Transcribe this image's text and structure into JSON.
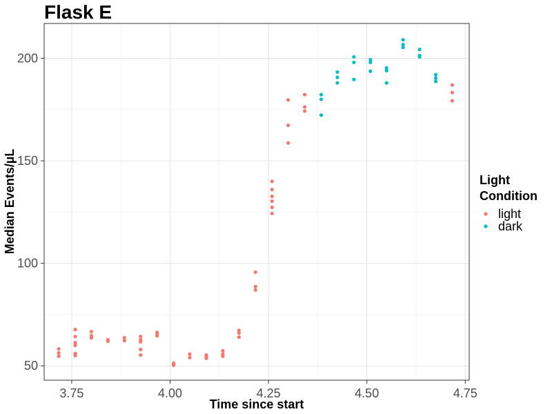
{
  "chart_data": {
    "type": "scatter",
    "title": "Flask E",
    "xlabel": "Time since start",
    "ylabel": "Median Events/µL",
    "xlim": [
      3.68,
      4.76
    ],
    "ylim": [
      43,
      217
    ],
    "x_ticks": [
      3.75,
      4.0,
      4.25,
      4.5,
      4.75
    ],
    "x_tick_labels": [
      "3.75",
      "4.00",
      "4.25",
      "4.50",
      "4.75"
    ],
    "y_ticks": [
      50,
      100,
      150,
      200
    ],
    "y_tick_labels": [
      "50",
      "100",
      "150",
      "200"
    ],
    "grid": true,
    "legend": {
      "title": "Light\nCondition",
      "placement": "right",
      "entries": [
        {
          "label": "light",
          "color": "#F8766D"
        },
        {
          "label": "dark",
          "color": "#00BFC4"
        }
      ]
    },
    "series": [
      {
        "name": "light",
        "color": "#F8766D",
        "points": [
          [
            3.717,
            58.3
          ],
          [
            3.717,
            56.3
          ],
          [
            3.717,
            54.7
          ],
          [
            3.759,
            67.7
          ],
          [
            3.759,
            64.3
          ],
          [
            3.759,
            61.3
          ],
          [
            3.759,
            60.0
          ],
          [
            3.759,
            56.0
          ],
          [
            3.759,
            55.0
          ],
          [
            3.8,
            66.7
          ],
          [
            3.8,
            64.7
          ],
          [
            3.8,
            63.7
          ],
          [
            3.842,
            62.7
          ],
          [
            3.842,
            62.0
          ],
          [
            3.884,
            63.7
          ],
          [
            3.884,
            62.3
          ],
          [
            3.925,
            64.3
          ],
          [
            3.925,
            62.7
          ],
          [
            3.925,
            61.7
          ],
          [
            3.925,
            58.0
          ],
          [
            3.925,
            55.3
          ],
          [
            3.967,
            66.3
          ],
          [
            3.967,
            65.3
          ],
          [
            3.967,
            64.7
          ],
          [
            4.009,
            51.3
          ],
          [
            4.009,
            50.7
          ],
          [
            4.009,
            50.3
          ],
          [
            4.05,
            55.7
          ],
          [
            4.05,
            54.0
          ],
          [
            4.092,
            55.3
          ],
          [
            4.092,
            54.3
          ],
          [
            4.092,
            53.7
          ],
          [
            4.134,
            57.3
          ],
          [
            4.134,
            55.7
          ],
          [
            4.134,
            54.7
          ],
          [
            4.175,
            67.3
          ],
          [
            4.175,
            66.0
          ],
          [
            4.175,
            64.0
          ],
          [
            4.217,
            95.7
          ],
          [
            4.217,
            88.7
          ],
          [
            4.217,
            87.0
          ],
          [
            4.259,
            140.0
          ],
          [
            4.259,
            136.0
          ],
          [
            4.259,
            132.7
          ],
          [
            4.259,
            130.3
          ],
          [
            4.259,
            127.3
          ],
          [
            4.259,
            124.3
          ],
          [
            4.3,
            179.7
          ],
          [
            4.3,
            167.3
          ],
          [
            4.3,
            158.7
          ],
          [
            4.342,
            182.3
          ],
          [
            4.342,
            176.3
          ],
          [
            4.342,
            174.3
          ],
          [
            4.717,
            187.0
          ],
          [
            4.717,
            183.3
          ],
          [
            4.717,
            179.3
          ]
        ]
      },
      {
        "name": "dark",
        "color": "#00BFC4",
        "points": [
          [
            4.384,
            182.3
          ],
          [
            4.384,
            180.0
          ],
          [
            4.384,
            172.3
          ],
          [
            4.425,
            193.3
          ],
          [
            4.425,
            190.7
          ],
          [
            4.425,
            188.0
          ],
          [
            4.467,
            200.7
          ],
          [
            4.467,
            198.0
          ],
          [
            4.467,
            189.7
          ],
          [
            4.509,
            199.3
          ],
          [
            4.509,
            198.0
          ],
          [
            4.509,
            193.7
          ],
          [
            4.55,
            195.3
          ],
          [
            4.55,
            194.0
          ],
          [
            4.55,
            188.0
          ],
          [
            4.592,
            209.0
          ],
          [
            4.592,
            206.7
          ],
          [
            4.592,
            205.3
          ],
          [
            4.634,
            204.3
          ],
          [
            4.634,
            201.3
          ],
          [
            4.634,
            200.7
          ],
          [
            4.675,
            192.0
          ],
          [
            4.675,
            190.3
          ],
          [
            4.675,
            188.7
          ]
        ]
      }
    ]
  }
}
